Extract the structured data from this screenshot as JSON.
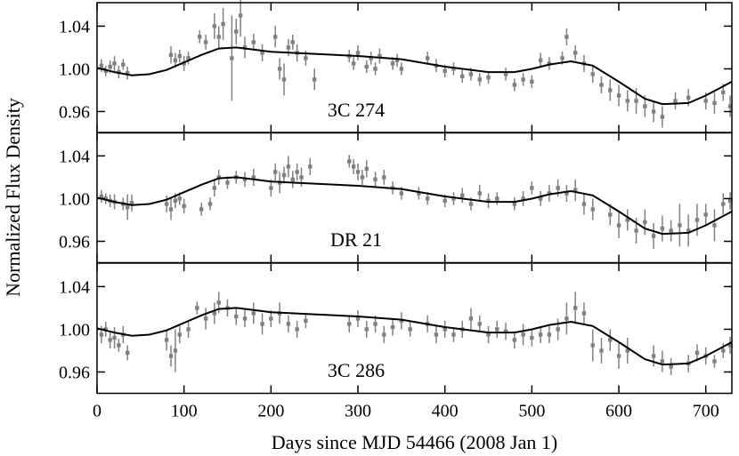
{
  "chart_data": [
    {
      "type": "scatter",
      "label": "3C 274",
      "xlim": [
        0,
        730
      ],
      "xticks": [
        0,
        100,
        200,
        300,
        400,
        500,
        600,
        700
      ],
      "ylim": [
        0.94,
        1.062
      ],
      "yticks": [
        0.96,
        {
          "value": 1,
          "label": "1.00"
        },
        1.04
      ],
      "series": [
        {
          "color": "#808080",
          "x": [
            5,
            10,
            15,
            20,
            25,
            30,
            35,
            85,
            90,
            95,
            100,
            105,
            118,
            125,
            135,
            140,
            145,
            155,
            160,
            165,
            170,
            180,
            190,
            205,
            210,
            215,
            220,
            225,
            230,
            240,
            250,
            290,
            295,
            300,
            310,
            315,
            320,
            325,
            340,
            345,
            350,
            380,
            390,
            400,
            410,
            420,
            430,
            440,
            450,
            470,
            480,
            490,
            500,
            510,
            520,
            535,
            540,
            550,
            560,
            570,
            580,
            590,
            600,
            610,
            620,
            630,
            640,
            650,
            665,
            680,
            700,
            710,
            720,
            728
          ],
          "values": [
            1.003,
            0.998,
            1.002,
            1.005,
            0.997,
            1.004,
            0.996,
            1.013,
            1.008,
            1.012,
            1.005,
            1.01,
            1.03,
            1.025,
            1.04,
            1.03,
            1.042,
            1.01,
            1.035,
            1.05,
            1.02,
            1.025,
            1.015,
            1.03,
            1.0,
            0.99,
            1.02,
            1.025,
            1.015,
            1.01,
            0.99,
            1.012,
            1.005,
            1.015,
            1.002,
            1.01,
            1.0,
            1.012,
            1.005,
            1.008,
            1.0,
            1.01,
            1.003,
            0.998,
            1.0,
            0.993,
            0.995,
            0.99,
            0.992,
            0.995,
            0.985,
            0.99,
            0.988,
            1.008,
            1.005,
            1.01,
            1.03,
            1.015,
            1.005,
            0.995,
            0.985,
            0.98,
            0.975,
            0.97,
            0.97,
            0.965,
            0.96,
            0.955,
            0.97,
            0.973,
            0.97,
            0.968,
            0.978,
            0.965
          ],
          "errors": [
            0.006,
            0.005,
            0.006,
            0.007,
            0.006,
            0.005,
            0.006,
            0.008,
            0.007,
            0.006,
            0.007,
            0.006,
            0.006,
            0.007,
            0.012,
            0.01,
            0.015,
            0.04,
            0.012,
            0.02,
            0.01,
            0.008,
            0.008,
            0.01,
            0.01,
            0.015,
            0.008,
            0.007,
            0.008,
            0.007,
            0.01,
            0.006,
            0.006,
            0.007,
            0.006,
            0.006,
            0.006,
            0.007,
            0.006,
            0.006,
            0.006,
            0.006,
            0.006,
            0.006,
            0.006,
            0.006,
            0.006,
            0.006,
            0.006,
            0.006,
            0.006,
            0.006,
            0.006,
            0.007,
            0.006,
            0.006,
            0.008,
            0.007,
            0.008,
            0.008,
            0.008,
            0.01,
            0.01,
            0.01,
            0.012,
            0.01,
            0.01,
            0.01,
            0.008,
            0.008,
            0.008,
            0.01,
            0.008,
            0.01
          ]
        },
        {
          "color": "#000000",
          "x": [
            0,
            20,
            40,
            60,
            80,
            100,
            120,
            140,
            160,
            180,
            200,
            250,
            300,
            350,
            400,
            450,
            480,
            500,
            520,
            545,
            570,
            600,
            630,
            650,
            680,
            700,
            730
          ],
          "values": [
            1.001,
            0.997,
            0.994,
            0.995,
            0.999,
            1.006,
            1.013,
            1.019,
            1.02,
            1.018,
            1.016,
            1.014,
            1.012,
            1.009,
            1.002,
            0.997,
            0.997,
            1.0,
            1.004,
            1.007,
            1.003,
            0.988,
            0.972,
            0.967,
            0.968,
            0.975,
            0.988
          ]
        }
      ]
    },
    {
      "type": "scatter",
      "label": "DR 21",
      "ylabel": "Normalized Flux Density",
      "xlim": [
        0,
        730
      ],
      "xticks": [
        0,
        100,
        200,
        300,
        400,
        500,
        600,
        700
      ],
      "ylim": [
        0.94,
        1.062
      ],
      "yticks": [
        0.96,
        {
          "value": 1,
          "label": "1.00"
        },
        1.04
      ],
      "series": [
        {
          "color": "#808080",
          "x": [
            5,
            10,
            15,
            20,
            30,
            35,
            40,
            80,
            85,
            90,
            95,
            100,
            120,
            130,
            135,
            140,
            150,
            160,
            170,
            180,
            200,
            205,
            210,
            215,
            220,
            225,
            230,
            235,
            245,
            290,
            295,
            300,
            305,
            310,
            320,
            330,
            340,
            350,
            370,
            380,
            400,
            410,
            420,
            430,
            440,
            450,
            460,
            480,
            490,
            500,
            510,
            520,
            530,
            540,
            550,
            560,
            570,
            590,
            600,
            610,
            620,
            630,
            640,
            650,
            660,
            670,
            680,
            690,
            700,
            710,
            720,
            728
          ],
          "values": [
            1.002,
            1.0,
            0.998,
            0.997,
            0.995,
            0.992,
            0.996,
            0.995,
            0.99,
            0.998,
            1.0,
            0.993,
            0.99,
            0.995,
            1.01,
            1.02,
            1.015,
            1.02,
            1.018,
            1.02,
            1.01,
            1.025,
            1.015,
            1.022,
            1.03,
            1.018,
            1.025,
            1.02,
            1.03,
            1.035,
            1.03,
            1.025,
            1.02,
            1.028,
            1.018,
            1.02,
            1.01,
            1.005,
            1.005,
            1.0,
            0.998,
            1.0,
            1.003,
            0.995,
            1.005,
            0.998,
            1.0,
            0.995,
            1.0,
            1.01,
            1.0,
            1.005,
            1.01,
            1.005,
            1.008,
            0.995,
            0.99,
            0.985,
            0.975,
            0.98,
            0.97,
            0.978,
            0.965,
            0.972,
            0.97,
            0.975,
            0.97,
            0.98,
            0.985,
            0.975,
            0.995,
            0.998
          ],
          "errors": [
            0.006,
            0.005,
            0.006,
            0.007,
            0.006,
            0.012,
            0.008,
            0.008,
            0.01,
            0.007,
            0.006,
            0.007,
            0.006,
            0.006,
            0.008,
            0.007,
            0.006,
            0.006,
            0.007,
            0.008,
            0.008,
            0.008,
            0.01,
            0.008,
            0.01,
            0.008,
            0.008,
            0.009,
            0.008,
            0.006,
            0.007,
            0.008,
            0.007,
            0.008,
            0.007,
            0.007,
            0.006,
            0.006,
            0.006,
            0.006,
            0.006,
            0.006,
            0.007,
            0.006,
            0.008,
            0.007,
            0.006,
            0.006,
            0.007,
            0.006,
            0.007,
            0.008,
            0.008,
            0.008,
            0.01,
            0.01,
            0.01,
            0.01,
            0.012,
            0.01,
            0.012,
            0.012,
            0.012,
            0.012,
            0.01,
            0.02,
            0.015,
            0.015,
            0.01,
            0.015,
            0.01,
            0.008
          ]
        },
        {
          "color": "#000000",
          "x": [
            0,
            20,
            40,
            60,
            80,
            100,
            120,
            140,
            160,
            180,
            200,
            250,
            300,
            350,
            400,
            450,
            480,
            500,
            520,
            545,
            570,
            600,
            630,
            650,
            680,
            700,
            730
          ],
          "values": [
            1.001,
            0.997,
            0.994,
            0.995,
            0.999,
            1.006,
            1.013,
            1.019,
            1.02,
            1.018,
            1.016,
            1.014,
            1.012,
            1.009,
            1.002,
            0.997,
            0.997,
            1.0,
            1.004,
            1.007,
            1.003,
            0.988,
            0.972,
            0.967,
            0.968,
            0.975,
            0.988
          ]
        }
      ]
    },
    {
      "type": "scatter",
      "label": "3C 286",
      "xlabel": "Days since MJD 54466 (2008 Jan 1)",
      "xlim": [
        0,
        730
      ],
      "xticks": [
        0,
        100,
        200,
        300,
        400,
        500,
        600,
        700
      ],
      "ylim": [
        0.94,
        1.062
      ],
      "yticks": [
        0.96,
        {
          "value": 1,
          "label": "1.00"
        },
        1.04
      ],
      "series": [
        {
          "color": "#808080",
          "x": [
            5,
            10,
            15,
            20,
            25,
            30,
            35,
            80,
            85,
            90,
            95,
            105,
            115,
            125,
            135,
            140,
            150,
            160,
            170,
            180,
            190,
            200,
            210,
            220,
            230,
            240,
            290,
            300,
            310,
            320,
            330,
            340,
            350,
            360,
            380,
            390,
            400,
            410,
            420,
            430,
            440,
            450,
            460,
            470,
            480,
            490,
            500,
            510,
            520,
            530,
            540,
            550,
            560,
            570,
            580,
            590,
            600,
            610,
            640,
            650,
            660,
            680,
            690,
            700,
            710,
            720,
            728
          ],
          "values": [
            0.995,
            1.0,
            0.99,
            0.992,
            0.985,
            0.995,
            0.978,
            0.99,
            0.975,
            0.98,
            0.995,
            1.0,
            1.02,
            1.01,
            1.015,
            1.025,
            1.02,
            1.012,
            1.01,
            1.015,
            1.005,
            1.01,
            1.015,
            1.005,
            1.0,
            1.008,
            1.005,
            1.01,
            1.0,
            1.005,
            0.995,
            1.002,
            1.008,
            1.0,
            1.005,
            0.995,
            1.0,
            0.995,
            1.0,
            1.01,
            1.005,
            0.995,
            1.0,
            0.998,
            0.99,
            0.995,
            0.992,
            0.995,
            0.995,
            1.0,
            1.01,
            1.02,
            1.015,
            0.985,
            0.98,
            0.99,
            0.975,
            0.98,
            0.975,
            0.97,
            0.965,
            0.968,
            0.978,
            0.975,
            0.97,
            0.98,
            0.985
          ],
          "errors": [
            0.008,
            0.007,
            0.008,
            0.01,
            0.006,
            0.008,
            0.007,
            0.01,
            0.01,
            0.02,
            0.008,
            0.008,
            0.006,
            0.01,
            0.01,
            0.01,
            0.008,
            0.008,
            0.008,
            0.01,
            0.01,
            0.008,
            0.01,
            0.008,
            0.008,
            0.007,
            0.008,
            0.008,
            0.008,
            0.008,
            0.008,
            0.008,
            0.008,
            0.007,
            0.008,
            0.008,
            0.008,
            0.007,
            0.008,
            0.01,
            0.008,
            0.008,
            0.008,
            0.008,
            0.008,
            0.01,
            0.008,
            0.008,
            0.008,
            0.01,
            0.015,
            0.015,
            0.01,
            0.015,
            0.012,
            0.01,
            0.012,
            0.012,
            0.01,
            0.01,
            0.008,
            0.008,
            0.008,
            0.008,
            0.006,
            0.007,
            0.008
          ]
        },
        {
          "color": "#000000",
          "x": [
            0,
            20,
            40,
            60,
            80,
            100,
            120,
            140,
            160,
            180,
            200,
            250,
            300,
            350,
            400,
            450,
            480,
            500,
            520,
            545,
            570,
            600,
            630,
            650,
            680,
            700,
            730
          ],
          "values": [
            1.001,
            0.997,
            0.994,
            0.995,
            0.999,
            1.006,
            1.013,
            1.019,
            1.02,
            1.018,
            1.016,
            1.014,
            1.012,
            1.009,
            1.002,
            0.997,
            0.997,
            1.0,
            1.004,
            1.007,
            1.003,
            0.988,
            0.972,
            0.967,
            0.968,
            0.975,
            0.988
          ]
        }
      ]
    }
  ]
}
